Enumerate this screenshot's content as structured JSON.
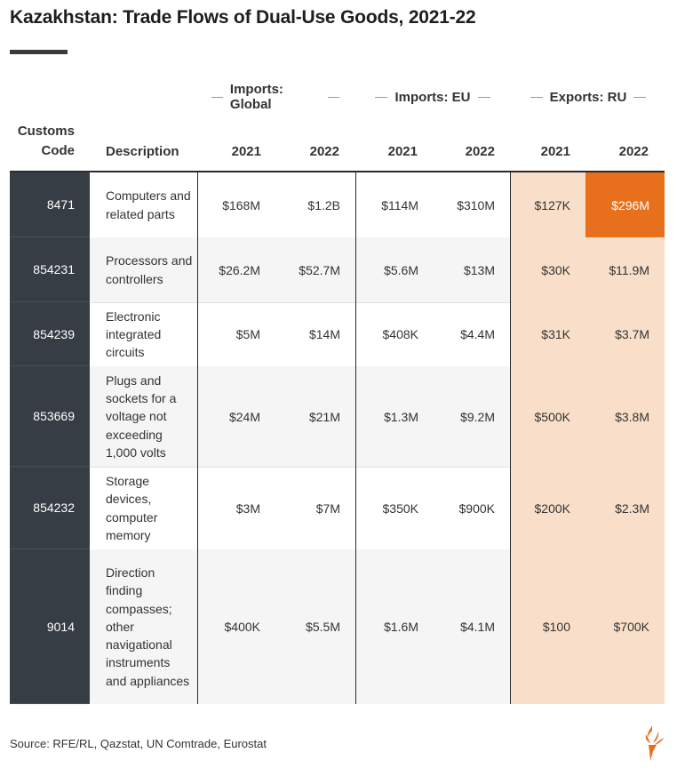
{
  "title": "Kazakhstan: Trade Flows of Dual-Use Goods, 2021-22",
  "groups": {
    "imports_global": "Imports: Global",
    "imports_eu": "Imports: EU",
    "exports_ru": "Exports: RU"
  },
  "columns": {
    "code_line1": "Customs",
    "code_line2": "Code",
    "description": "Description",
    "y2021": "2021",
    "y2022": "2022"
  },
  "rows": [
    {
      "code": "8471",
      "description": "Computers and related parts",
      "g21": "$168M",
      "g22": "$1.2B",
      "e21": "$114M",
      "e22": "$310M",
      "r21": "$127K",
      "r22": "$296M"
    },
    {
      "code": "854231",
      "description": "Processors and controllers",
      "g21": "$26.2M",
      "g22": "$52.7M",
      "e21": "$5.6M",
      "e22": "$13M",
      "r21": "$30K",
      "r22": "$11.9M"
    },
    {
      "code": "854239",
      "description": "Electronic integrated circuits",
      "g21": "$5M",
      "g22": "$14M",
      "e21": "$408K",
      "e22": "$4.4M",
      "r21": "$31K",
      "r22": "$3.7M"
    },
    {
      "code": "853669",
      "description": "Plugs and sockets for a voltage not exceeding 1,000 volts",
      "g21": "$24M",
      "g22": "$21M",
      "e21": "$1.3M",
      "e22": "$9.2M",
      "r21": "$500K",
      "r22": "$3.8M"
    },
    {
      "code": "854232",
      "description": "Storage devices, computer memory",
      "g21": "$3M",
      "g22": "$7M",
      "e21": "$350K",
      "e22": "$900K",
      "r21": "$200K",
      "r22": "$2.3M"
    },
    {
      "code": "9014",
      "description": "Direction finding compasses; other navigational instruments and appliances",
      "g21": "$400K",
      "g22": "$5.5M",
      "e21": "$1.6M",
      "e22": "$4.1M",
      "r21": "$100",
      "r22": "$700K"
    }
  ],
  "source": "Source: RFE/RL, Qazstat, UN Comtrade, Eurostat",
  "colors": {
    "code_column": "#373d44",
    "exports_ru_fill": "#f9dfc9",
    "highlight": "#e8701d"
  },
  "logo_icon": "rferl-torch-icon"
}
